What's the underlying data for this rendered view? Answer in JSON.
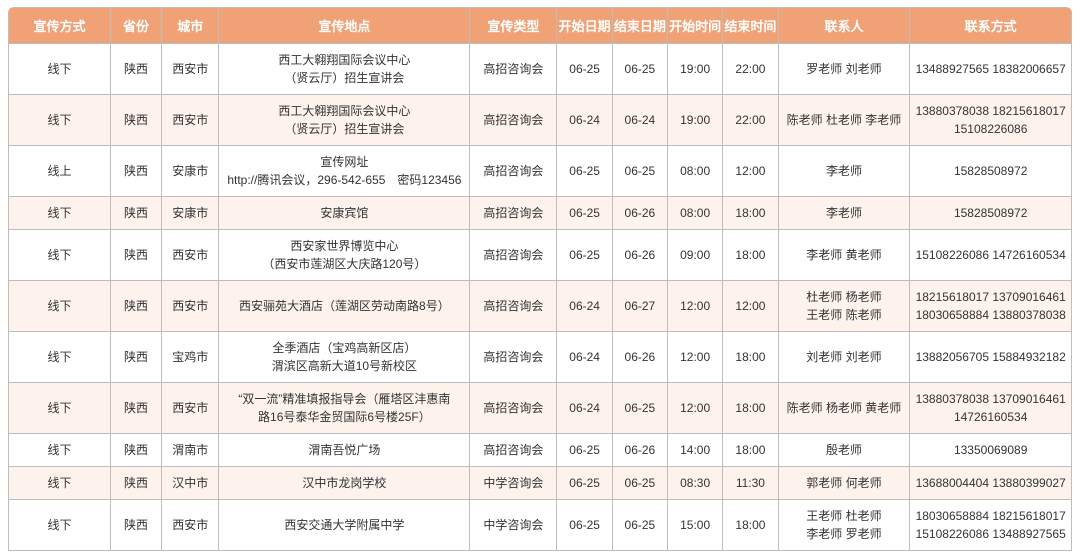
{
  "colors": {
    "header_bg": "#f0a276",
    "header_text": "#ffffff",
    "row_bg": "#ffffff",
    "row_alt_bg": "#fdf2ec",
    "border": "#bdbdbd",
    "text": "#333333"
  },
  "table": {
    "headers": [
      "宣传方式",
      "省份",
      "城市",
      "宣传地点",
      "宣传类型",
      "开始日期",
      "结束日期",
      "开始时间",
      "结束时间",
      "联系人",
      "联系方式"
    ],
    "rows": [
      {
        "method": "线下",
        "province": "陕西",
        "city": "西安市",
        "location": [
          "西工大翱翔国际会议中心",
          "（贤云厅）招生宣讲会"
        ],
        "type": "高招咨询会",
        "start_date": "06-25",
        "end_date": "06-25",
        "start_time": "19:00",
        "end_time": "22:00",
        "contacts": [
          "罗老师 刘老师"
        ],
        "phones": [
          "13488927565 18382006657"
        ]
      },
      {
        "method": "线下",
        "province": "陕西",
        "city": "西安市",
        "location": [
          "西工大翱翔国际会议中心",
          "（贤云厅）招生宣讲会"
        ],
        "type": "高招咨询会",
        "start_date": "06-24",
        "end_date": "06-24",
        "start_time": "19:00",
        "end_time": "22:00",
        "contacts": [
          "陈老师 杜老师 李老师"
        ],
        "phones": [
          "13880378038 18215618017",
          "15108226086"
        ]
      },
      {
        "method": "线上",
        "province": "陕西",
        "city": "安康市",
        "location": [
          "宣传网址",
          "http://腾讯会议，296-542-655　密码123456"
        ],
        "type": "高招咨询会",
        "start_date": "06-25",
        "end_date": "06-25",
        "start_time": "08:00",
        "end_time": "12:00",
        "contacts": [
          "李老师"
        ],
        "phones": [
          "15828508972"
        ]
      },
      {
        "method": "线下",
        "province": "陕西",
        "city": "安康市",
        "location": [
          "安康宾馆"
        ],
        "type": "高招咨询会",
        "start_date": "06-25",
        "end_date": "06-26",
        "start_time": "08:00",
        "end_time": "18:00",
        "contacts": [
          "李老师"
        ],
        "phones": [
          "15828508972"
        ]
      },
      {
        "method": "线下",
        "province": "陕西",
        "city": "西安市",
        "location": [
          "西安家世界博览中心",
          "（西安市莲湖区大庆路120号）"
        ],
        "type": "高招咨询会",
        "start_date": "06-25",
        "end_date": "06-26",
        "start_time": "09:00",
        "end_time": "18:00",
        "contacts": [
          "李老师 黄老师"
        ],
        "phones": [
          "15108226086 14726160534"
        ]
      },
      {
        "method": "线下",
        "province": "陕西",
        "city": "西安市",
        "location": [
          "西安骊苑大酒店（莲湖区劳动南路8号）"
        ],
        "type": "高招咨询会",
        "start_date": "06-24",
        "end_date": "06-27",
        "start_time": "12:00",
        "end_time": "12:00",
        "contacts": [
          "杜老师 杨老师",
          "王老师 陈老师"
        ],
        "phones": [
          "18215618017 13709016461",
          "18030658884 13880378038"
        ]
      },
      {
        "method": "线下",
        "province": "陕西",
        "city": "宝鸡市",
        "location": [
          "全季酒店（宝鸡高新区店）",
          "渭滨区高新大道10号新校区"
        ],
        "type": "高招咨询会",
        "start_date": "06-24",
        "end_date": "06-26",
        "start_time": "12:00",
        "end_time": "18:00",
        "contacts": [
          "刘老师 刘老师"
        ],
        "phones": [
          "13882056705 15884932182"
        ]
      },
      {
        "method": "线下",
        "province": "陕西",
        "city": "西安市",
        "location": [
          "“双一流”精准填报指导会（雁塔区沣惠南",
          "路16号泰华金贸国际6号楼25F）"
        ],
        "type": "高招咨询会",
        "start_date": "06-24",
        "end_date": "06-25",
        "start_time": "12:00",
        "end_time": "18:00",
        "contacts": [
          "陈老师 杨老师 黄老师"
        ],
        "phones": [
          "13880378038 13709016461",
          "14726160534"
        ]
      },
      {
        "method": "线下",
        "province": "陕西",
        "city": "渭南市",
        "location": [
          "渭南吾悦广场"
        ],
        "type": "高招咨询会",
        "start_date": "06-25",
        "end_date": "06-26",
        "start_time": "14:00",
        "end_time": "18:00",
        "contacts": [
          "殷老师"
        ],
        "phones": [
          "13350069089"
        ]
      },
      {
        "method": "线下",
        "province": "陕西",
        "city": "汉中市",
        "location": [
          "汉中市龙岗学校"
        ],
        "type": "中学咨询会",
        "start_date": "06-25",
        "end_date": "06-25",
        "start_time": "08:30",
        "end_time": "11:30",
        "contacts": [
          "郭老师 何老师"
        ],
        "phones": [
          "13688004404 13880399027"
        ]
      },
      {
        "method": "线下",
        "province": "陕西",
        "city": "西安市",
        "location": [
          "西安交通大学附属中学"
        ],
        "type": "中学咨询会",
        "start_date": "06-25",
        "end_date": "06-25",
        "start_time": "15:00",
        "end_time": "18:00",
        "contacts": [
          "王老师 杜老师",
          "李老师 罗老师"
        ],
        "phones": [
          "18030658884 18215618017",
          "15108226086 13488927565"
        ]
      }
    ]
  }
}
